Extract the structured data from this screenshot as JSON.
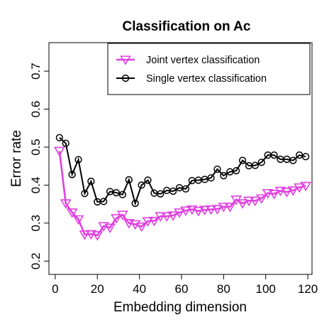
{
  "chart_data": {
    "type": "line",
    "title": "Classification on Ac",
    "xlabel": "Embedding dimension",
    "ylabel": "Error rate",
    "xlim": [
      -3,
      122
    ],
    "ylim": [
      0.165,
      0.775
    ],
    "xticks": [
      0,
      20,
      40,
      60,
      80,
      100,
      120
    ],
    "yticks": [
      0.2,
      0.3,
      0.4,
      0.5,
      0.6,
      0.7
    ],
    "legend_position": "top-right",
    "x": [
      2,
      5,
      8,
      11,
      14,
      17,
      20,
      23,
      26,
      29,
      32,
      35,
      38,
      41,
      44,
      47,
      50,
      53,
      56,
      59,
      62,
      65,
      68,
      71,
      74,
      77,
      80,
      83,
      86,
      89,
      92,
      95,
      98,
      101,
      104,
      107,
      110,
      113,
      116,
      119
    ],
    "series": [
      {
        "name": "Joint vertex classification",
        "color": "#e040e0",
        "marker": "triangle-down",
        "values": [
          0.49,
          0.352,
          0.328,
          0.31,
          0.27,
          0.271,
          0.268,
          0.292,
          0.288,
          0.313,
          0.322,
          0.3,
          0.297,
          0.291,
          0.305,
          0.306,
          0.318,
          0.318,
          0.32,
          0.328,
          0.333,
          0.336,
          0.332,
          0.335,
          0.336,
          0.337,
          0.343,
          0.343,
          0.362,
          0.352,
          0.359,
          0.359,
          0.365,
          0.379,
          0.377,
          0.385,
          0.382,
          0.386,
          0.394,
          0.398
        ]
      },
      {
        "name": "Single vertex classification",
        "color": "#000000",
        "marker": "circle",
        "values": [
          0.525,
          0.51,
          0.428,
          0.467,
          0.378,
          0.41,
          0.356,
          0.357,
          0.383,
          0.38,
          0.375,
          0.414,
          0.352,
          0.4,
          0.413,
          0.379,
          0.377,
          0.386,
          0.384,
          0.393,
          0.39,
          0.412,
          0.413,
          0.415,
          0.419,
          0.442,
          0.425,
          0.435,
          0.438,
          0.465,
          0.451,
          0.452,
          0.46,
          0.479,
          0.479,
          0.468,
          0.468,
          0.465,
          0.479,
          0.475
        ]
      }
    ]
  }
}
